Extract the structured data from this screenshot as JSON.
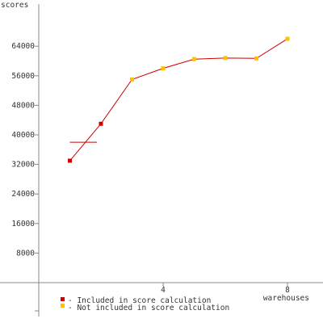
{
  "chart_data": {
    "type": "line",
    "ylabel": "scores",
    "xlabel": "warehouses",
    "x_ticks": [
      "4",
      "8"
    ],
    "y_ticks": [
      "8000",
      "16000",
      "24000",
      "32000",
      "40000",
      "48000",
      "56000",
      "64000"
    ],
    "xlim": [
      -0.2,
      9.2
    ],
    "ylim": [
      -8000,
      74000
    ],
    "series": [
      {
        "name": "",
        "color": "#cc0000",
        "points": [
          {
            "x": 1,
            "y": 33000,
            "included": true
          },
          {
            "x": 2,
            "y": 43000,
            "included": true
          },
          {
            "x": 3,
            "y": 55000,
            "included": false
          },
          {
            "x": 4,
            "y": 58000,
            "included": false
          },
          {
            "x": 5,
            "y": 60500,
            "included": false
          },
          {
            "x": 6,
            "y": 60800,
            "included": false
          },
          {
            "x": 7,
            "y": 60700,
            "included": false
          },
          {
            "x": 8,
            "y": 66000,
            "included": false
          }
        ]
      }
    ],
    "reference_line": {
      "x_start": 1,
      "x_end": 2,
      "y": 38000,
      "color": "#cc0000"
    },
    "legend": {
      "placement": "bottom-left",
      "items": [
        {
          "label": "- Included in score calculation",
          "color": "#cc0000"
        },
        {
          "label": "- Not included in score calculation",
          "color": "#ffc000"
        }
      ]
    },
    "grid": false
  }
}
